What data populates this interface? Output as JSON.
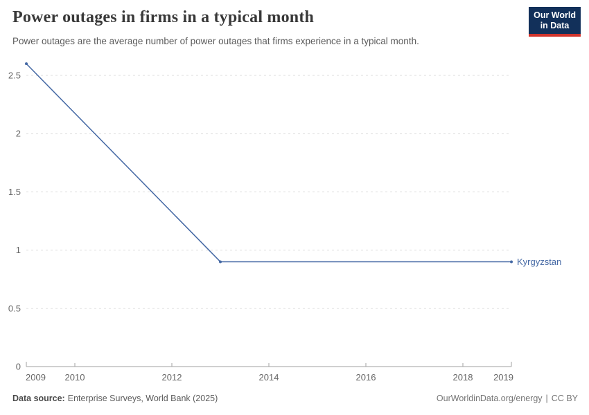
{
  "header": {
    "title": "Power outages in firms in a typical month",
    "subtitle": "Power outages are the average number of power outages that firms experience in a typical month.",
    "logo": {
      "line1": "Our World",
      "line2": "in Data",
      "bg_color": "#12305a",
      "stripe_color": "#d0342c",
      "text_color": "#ffffff"
    }
  },
  "chart_data": {
    "type": "line",
    "title": "Power outages in firms in a typical month",
    "xlabel": "",
    "ylabel": "",
    "x_range": [
      2009,
      2019
    ],
    "y_range": [
      0,
      2.5
    ],
    "grid": true,
    "gridline_color": "#dcdcdc",
    "axis_color": "#a1a1a1",
    "tick_label_color": "#666666",
    "legend_position": "end-of-line",
    "y_axis": {
      "ticks": [
        {
          "value": 0,
          "label": "0"
        },
        {
          "value": 0.5,
          "label": "0.5"
        },
        {
          "value": 1,
          "label": "1"
        },
        {
          "value": 1.5,
          "label": "1.5"
        },
        {
          "value": 2,
          "label": "2"
        },
        {
          "value": 2.5,
          "label": "2.5"
        }
      ]
    },
    "x_axis": {
      "ticks": [
        {
          "value": 2009,
          "label": "2009"
        },
        {
          "value": 2010,
          "label": "2010"
        },
        {
          "value": 2012,
          "label": "2012"
        },
        {
          "value": 2014,
          "label": "2014"
        },
        {
          "value": 2016,
          "label": "2016"
        },
        {
          "value": 2018,
          "label": "2018"
        },
        {
          "value": 2019,
          "label": "2019"
        }
      ]
    },
    "series": [
      {
        "name": "Kyrgyzstan",
        "color": "#4468a4",
        "points": [
          {
            "x": 2009,
            "y": 2.6
          },
          {
            "x": 2013,
            "y": 0.9
          },
          {
            "x": 2019,
            "y": 0.9
          }
        ]
      }
    ]
  },
  "footer": {
    "data_source_label": "Data source:",
    "data_source_value": "Enterprise Surveys, World Bank (2025)",
    "link": "OurWorldinData.org/energy",
    "separator": "|",
    "license": "CC BY"
  }
}
